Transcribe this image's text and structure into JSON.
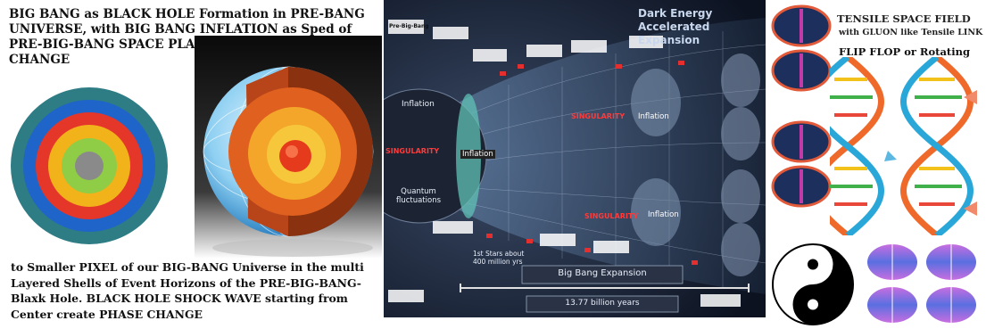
{
  "left_panel": {
    "top_text": "BIG BANG as BLACK HOLE Formation in PRE-BANG UNIVERSE, with BIG BANG INFLATION as Sped of PRE-BIG-BANG SPACE PLANCKS PIXELS PHASE CHANGE",
    "bottom_text": " to Smaller PIXEL of our BIG-BANG Universe in the multi Layered  Shells of Event Horizons of the PRE-BIG-BANG- Blaxk Hole. BLACK HOLE SHOCK WAVE starting from Center create PHASE CHANGE",
    "ring_colors": [
      "#2e7c84",
      "#1f64c9",
      "#e5362a",
      "#f2b21a",
      "#8fcd46",
      "#8a8a8a"
    ]
  },
  "middle_panel": {
    "header": "Dark Energy Accelerated Expansion",
    "labels": {
      "inflation_big": "Inflation",
      "singularity_1": "SINGULARITY",
      "inflation_small": "Inflation",
      "quantum": "Quantum fluctuations",
      "singularity_2": "SINGULARITY",
      "inflation_mid_top": "Inflation",
      "singularity_3": "SINGULARITY",
      "inflation_mid_bottom": "Inflation",
      "first_stars": "1st Stars about 400 million yrs",
      "expansion": "Big Bang Expansion",
      "years": "13.77 billion years",
      "pre_big_bang": "Pre-Big-Bang"
    }
  },
  "right_panel": {
    "line1": "TENSILE SPACE FIELD",
    "line2": "with GLUON like Tensile LINK",
    "line3": "FLIP FLOP or Rotating"
  }
}
